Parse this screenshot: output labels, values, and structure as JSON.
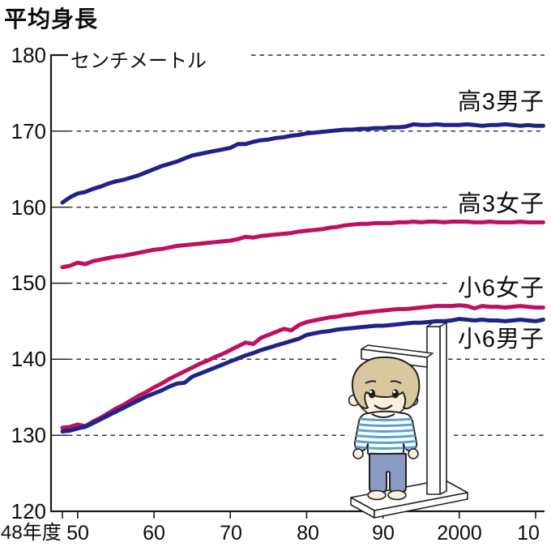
{
  "title": "平均身長",
  "unit_label": "センチメートル",
  "colors": {
    "boys_line": "#1d2388",
    "girls_line": "#c00f60"
  },
  "chart_data": {
    "type": "line",
    "title": "平均身長",
    "ylabel": "センチメートル",
    "ylim": [
      120,
      180
    ],
    "grid": "dashed-horizontal",
    "legend_position": "right-of-lines",
    "x_axis_note": "years are Japanese fiscal years, 1948–2011",
    "x_ticks": [
      "48年度",
      "50",
      "60",
      "70",
      "80",
      "90",
      "2000",
      "10"
    ],
    "x_tick_years": [
      1948,
      1950,
      1960,
      1970,
      1980,
      1990,
      2000,
      2010
    ],
    "y_ticks": [
      "180",
      "170",
      "160",
      "150",
      "140",
      "130",
      "120"
    ],
    "years": [
      1948,
      1949,
      1950,
      1951,
      1952,
      1953,
      1954,
      1955,
      1956,
      1957,
      1958,
      1959,
      1960,
      1961,
      1962,
      1963,
      1964,
      1965,
      1966,
      1967,
      1968,
      1969,
      1970,
      1971,
      1972,
      1973,
      1974,
      1975,
      1976,
      1977,
      1978,
      1979,
      1980,
      1981,
      1982,
      1983,
      1984,
      1985,
      1986,
      1987,
      1988,
      1989,
      1990,
      1991,
      1992,
      1993,
      1994,
      1995,
      1996,
      1997,
      1998,
      1999,
      2000,
      2001,
      2002,
      2003,
      2004,
      2005,
      2006,
      2007,
      2008,
      2009,
      2010,
      2011
    ],
    "series": [
      {
        "name": "高3男子",
        "color": "#1d2388",
        "values": [
          160.6,
          161.3,
          161.8,
          162.0,
          162.4,
          162.7,
          163.1,
          163.4,
          163.6,
          163.9,
          164.2,
          164.6,
          165.0,
          165.4,
          165.7,
          166.0,
          166.4,
          166.8,
          167.0,
          167.2,
          167.4,
          167.6,
          167.8,
          168.3,
          168.3,
          168.6,
          168.8,
          168.9,
          169.1,
          169.2,
          169.4,
          169.5,
          169.7,
          169.8,
          169.9,
          170.0,
          170.1,
          170.2,
          170.2,
          170.3,
          170.3,
          170.4,
          170.4,
          170.5,
          170.5,
          170.6,
          170.9,
          170.8,
          170.8,
          170.9,
          170.8,
          170.8,
          170.8,
          170.9,
          170.8,
          170.7,
          170.8,
          170.8,
          170.9,
          170.8,
          170.7,
          170.8,
          170.7,
          170.7
        ]
      },
      {
        "name": "高3女子",
        "color": "#c00f60",
        "values": [
          152.1,
          152.3,
          152.7,
          152.5,
          152.9,
          153.1,
          153.3,
          153.5,
          153.6,
          153.8,
          154.0,
          154.2,
          154.4,
          154.5,
          154.7,
          154.9,
          155.0,
          155.1,
          155.2,
          155.3,
          155.4,
          155.5,
          155.6,
          155.8,
          156.1,
          156.0,
          156.2,
          156.3,
          156.4,
          156.5,
          156.6,
          156.8,
          156.9,
          157.0,
          157.1,
          157.3,
          157.4,
          157.6,
          157.7,
          157.8,
          157.8,
          157.9,
          157.9,
          157.9,
          158.0,
          158.0,
          158.1,
          158.0,
          158.1,
          158.1,
          158.0,
          158.1,
          158.1,
          158.1,
          158.0,
          158.0,
          158.1,
          158.0,
          158.0,
          158.0,
          158.1,
          158.0,
          158.0,
          158.0
        ]
      },
      {
        "name": "小6女子",
        "color": "#c00f60",
        "values": [
          131.0,
          131.1,
          131.4,
          131.2,
          131.8,
          132.3,
          132.9,
          133.5,
          134.0,
          134.6,
          135.2,
          135.7,
          136.3,
          136.8,
          137.4,
          137.9,
          138.4,
          138.9,
          139.4,
          139.8,
          140.3,
          140.7,
          141.2,
          141.7,
          142.2,
          142.0,
          142.8,
          143.2,
          143.6,
          144.0,
          143.8,
          144.5,
          144.9,
          145.1,
          145.3,
          145.5,
          145.6,
          145.8,
          145.9,
          146.1,
          146.2,
          146.3,
          146.4,
          146.5,
          146.6,
          146.6,
          146.7,
          146.8,
          146.9,
          147.0,
          147.0,
          147.0,
          147.1,
          147.0,
          146.7,
          147.0,
          146.9,
          146.9,
          146.8,
          146.9,
          147.0,
          146.9,
          146.8,
          146.8
        ]
      },
      {
        "name": "小6男子",
        "color": "#1d2388",
        "values": [
          130.5,
          130.6,
          130.9,
          131.1,
          131.6,
          132.1,
          132.6,
          133.1,
          133.6,
          134.1,
          134.6,
          135.1,
          135.5,
          135.9,
          136.4,
          136.8,
          136.9,
          137.7,
          138.1,
          138.5,
          138.9,
          139.3,
          139.7,
          140.1,
          140.5,
          140.8,
          141.2,
          141.5,
          141.8,
          142.1,
          142.4,
          142.7,
          143.2,
          143.4,
          143.6,
          143.7,
          143.9,
          144.0,
          144.1,
          144.2,
          144.3,
          144.4,
          144.4,
          144.5,
          144.6,
          144.7,
          144.8,
          144.8,
          144.9,
          145.0,
          145.0,
          145.1,
          145.3,
          145.2,
          145.1,
          145.2,
          145.1,
          145.1,
          145.0,
          145.1,
          145.2,
          145.1,
          145.0,
          145.2
        ]
      }
    ]
  },
  "illustration": {
    "description": "child standing at height measuring scale"
  }
}
